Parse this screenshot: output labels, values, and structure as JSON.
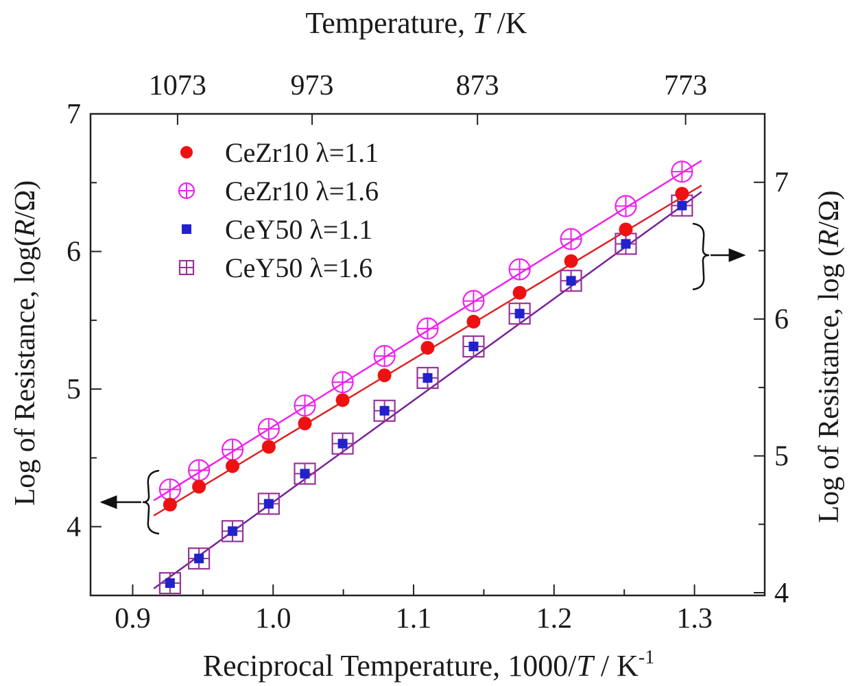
{
  "chart_data": {
    "type": "scatter",
    "title": "",
    "xlabel": "Reciprocal Temperature, 1000/T / K-1",
    "xlabel_parts": {
      "prefix": "Reciprocal Temperature, 1000/",
      "var": "T",
      "mid": " / K",
      "sup": "-1"
    },
    "top_axis": {
      "label": "Temperature, T /K",
      "label_parts": {
        "prefix": "Temperature, ",
        "var": "T",
        "suffix": " /K"
      },
      "ticks": [
        {
          "label": "1073",
          "x": 0.93197
        },
        {
          "label": "973",
          "x": 1.02775
        },
        {
          "label": "873",
          "x": 1.14548
        },
        {
          "label": "773",
          "x": 1.29366
        }
      ]
    },
    "left_axis": {
      "label": "Log of Resistance, log(R/Ω)",
      "label_parts": {
        "prefix": "Log of  Resistance, log(",
        "var": "R",
        "suffix": "/Ω)"
      },
      "ylim": [
        3.5,
        7.0
      ],
      "ticks": [
        "4",
        "5",
        "6",
        "7"
      ]
    },
    "right_axis": {
      "label": "Log of Resistance, log (R/Ω)",
      "label_parts": {
        "prefix": "Log of Resistance, log (",
        "var": "R",
        "suffix": "/Ω)"
      },
      "ylim": [
        3.98,
        7.5
      ],
      "ticks": [
        "4",
        "5",
        "6",
        "7"
      ]
    },
    "xlim": [
      0.87,
      1.35
    ],
    "x_ticks": [
      "0.9",
      "1.0",
      "1.1",
      "1.2",
      "1.3"
    ],
    "legend": [
      {
        "name": "CeZr10 λ=1.1",
        "marker": "circle-filled",
        "color": "#ee1111"
      },
      {
        "name": "CeZr10 λ=1.6",
        "marker": "circle-cross",
        "color": "#ee22ee"
      },
      {
        "name": "CeY50 λ=1.1",
        "marker": "square-filled",
        "color": "#2222cc"
      },
      {
        "name": "CeY50 λ=1.6",
        "marker": "square-cross",
        "color": "#993399"
      }
    ],
    "x": [
      0.9266,
      0.9472,
      0.9711,
      0.9969,
      1.0226,
      1.0495,
      1.0793,
      1.11,
      1.1427,
      1.1755,
      1.2121,
      1.2511,
      1.2911
    ],
    "series": [
      {
        "name": "CeZr10 λ=1.1",
        "axis": "left",
        "color": "#ee1111",
        "line_color": "#dd2222",
        "values": [
          4.16,
          4.29,
          4.44,
          4.58,
          4.75,
          4.92,
          5.1,
          5.3,
          5.49,
          5.7,
          5.93,
          6.16,
          6.42
        ],
        "fit": {
          "x": [
            0.915,
            1.305
          ],
          "y": [
            4.08,
            6.48
          ]
        }
      },
      {
        "name": "CeZr10 λ=1.6",
        "axis": "left",
        "color": "#ee22ee",
        "line_color": "#ee22ee",
        "values": [
          4.27,
          4.41,
          4.56,
          4.71,
          4.88,
          5.05,
          5.24,
          5.44,
          5.64,
          5.87,
          6.09,
          6.33,
          6.58
        ],
        "fit": {
          "x": [
            0.915,
            1.305
          ],
          "y": [
            4.19,
            6.66
          ]
        }
      },
      {
        "name": "CeY50 λ=1.1",
        "axis": "right",
        "color": "#2222cc",
        "line_color": "#772299",
        "values": [
          4.07,
          4.25,
          4.45,
          4.65,
          4.87,
          5.09,
          5.33,
          5.57,
          5.8,
          6.04,
          6.28,
          6.55,
          6.83
        ],
        "fit": {
          "x": [
            0.915,
            1.305
          ],
          "y": [
            4.03,
            6.93
          ]
        }
      },
      {
        "name": "CeY50 λ=1.6",
        "axis": "right",
        "color": "#993399",
        "line_color": "#772299",
        "values": [
          4.07,
          4.25,
          4.45,
          4.65,
          4.87,
          5.09,
          5.33,
          5.57,
          5.8,
          6.04,
          6.28,
          6.55,
          6.83
        ]
      }
    ],
    "annotations": [
      {
        "type": "brace-arrow",
        "points_to": "left axis",
        "groups": [
          "CeZr10 λ=1.1",
          "CeZr10 λ=1.6"
        ]
      },
      {
        "type": "brace-arrow",
        "points_to": "right axis",
        "groups": [
          "CeY50 λ=1.1",
          "CeY50 λ=1.6"
        ]
      }
    ]
  }
}
